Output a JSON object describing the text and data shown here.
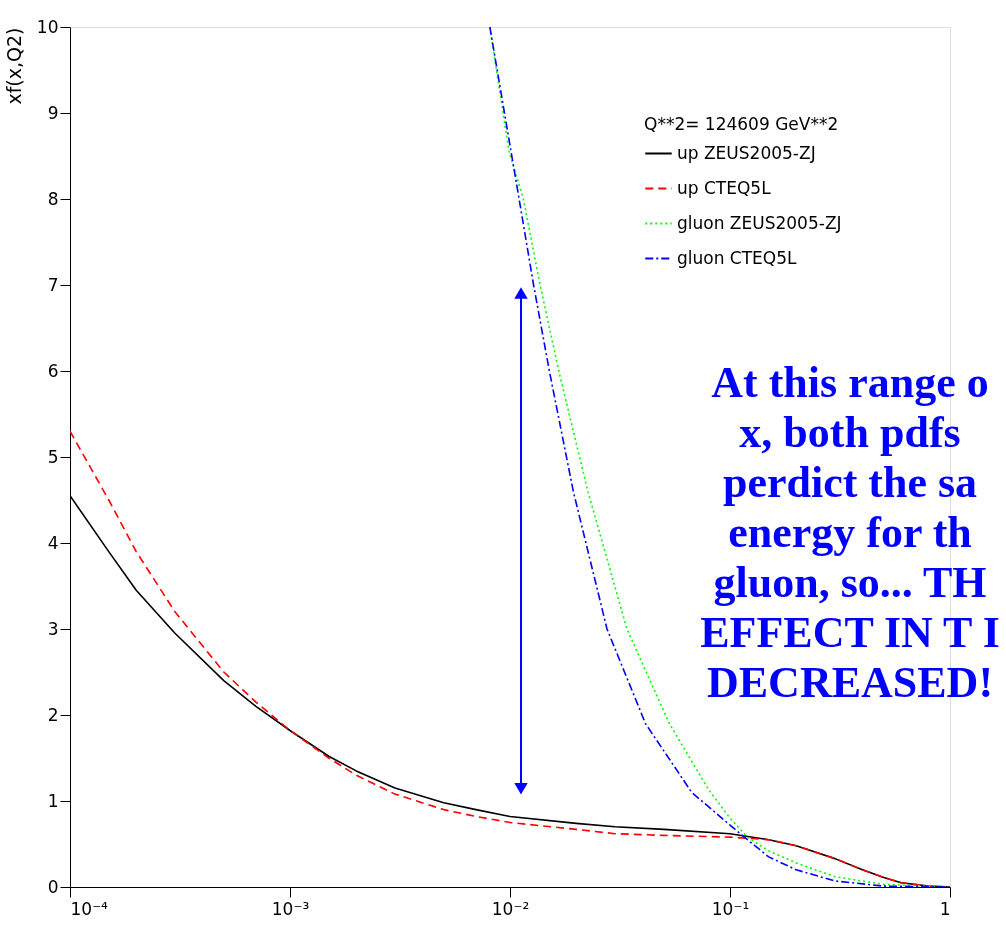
{
  "chart_data": {
    "type": "line",
    "ylabel": "xf(x,Q2)",
    "legend_title": "Q**2=   124609   GeV**2",
    "legend": "top right",
    "grid": false,
    "log": "x",
    "xlim": [
      0.0001,
      1
    ],
    "xticks": [
      {
        "value": 0.0001,
        "label": "10⁻⁴"
      },
      {
        "value": 0.001,
        "label": "10⁻³"
      },
      {
        "value": 0.01,
        "label": "10⁻²"
      },
      {
        "value": 0.1,
        "label": "10⁻¹"
      },
      {
        "value": 1,
        "label": "1"
      }
    ],
    "ylim": [
      0,
      10
    ],
    "yticks": [
      0,
      1,
      2,
      3,
      4,
      5,
      6,
      7,
      8,
      9,
      10
    ],
    "annotations": [
      "At this range o\nx, both pdfs\nperdict the sa\nenergy for th\ngluon, so... TH\nEFFECT IN T I\nDECREASED!"
    ],
    "series": [
      {
        "name": "up      ZEUS2005-ZJ",
        "color": "#000000",
        "line_style": "solid",
        "x": [
          0.0001,
          0.00015,
          0.0002,
          0.0003,
          0.0005,
          0.0007,
          0.001,
          0.0015,
          0.002,
          0.003,
          0.005,
          0.007,
          0.01,
          0.02,
          0.03,
          0.05,
          0.1,
          0.15,
          0.2,
          0.3,
          0.4,
          0.5,
          0.6,
          0.8,
          1
        ],
        "values": [
          4.55,
          3.9,
          3.45,
          2.95,
          2.4,
          2.1,
          1.82,
          1.52,
          1.35,
          1.15,
          0.98,
          0.9,
          0.82,
          0.74,
          0.7,
          0.67,
          0.62,
          0.55,
          0.48,
          0.33,
          0.2,
          0.11,
          0.05,
          0.01,
          0
        ]
      },
      {
        "name": "up      CTEQ5L",
        "color": "#ff0000",
        "line_style": "dashed",
        "x": [
          0.0001,
          0.00015,
          0.0002,
          0.0003,
          0.0005,
          0.0007,
          0.001,
          0.0015,
          0.002,
          0.003,
          0.005,
          0.007,
          0.01,
          0.02,
          0.03,
          0.05,
          0.1,
          0.15,
          0.2,
          0.3,
          0.4,
          0.5,
          0.6,
          0.8,
          1
        ],
        "values": [
          5.3,
          4.5,
          3.9,
          3.2,
          2.5,
          2.15,
          1.82,
          1.5,
          1.3,
          1.08,
          0.9,
          0.82,
          0.75,
          0.67,
          0.62,
          0.6,
          0.58,
          0.55,
          0.48,
          0.33,
          0.2,
          0.11,
          0.05,
          0.01,
          0
        ]
      },
      {
        "name": "gluon  ZEUS2005-ZJ",
        "color": "#00ff00",
        "line_style": "dotted",
        "x": [
          0.0081,
          0.0099,
          0.0115,
          0.0137,
          0.0168,
          0.0226,
          0.034,
          0.053,
          0.08,
          0.1,
          0.12,
          0.15,
          0.2,
          0.3,
          0.5,
          1
        ],
        "values": [
          10,
          8.55,
          8.0,
          7.0,
          5.96,
          4.6,
          3.0,
          1.9,
          1.13,
          0.8,
          0.58,
          0.42,
          0.28,
          0.12,
          0.03,
          0
        ]
      },
      {
        "name": "gluon  CTEQ5L",
        "color": "#0000ff",
        "line_style": "dashdot",
        "x": [
          0.0081,
          0.011,
          0.0128,
          0.0151,
          0.0194,
          0.0276,
          0.0413,
          0.067,
          0.1,
          0.12,
          0.15,
          0.2,
          0.3,
          0.5,
          1
        ],
        "values": [
          10,
          8.0,
          7.0,
          6.0,
          4.6,
          3.0,
          1.9,
          1.1,
          0.72,
          0.55,
          0.35,
          0.2,
          0.07,
          0.01,
          0
        ]
      }
    ]
  }
}
